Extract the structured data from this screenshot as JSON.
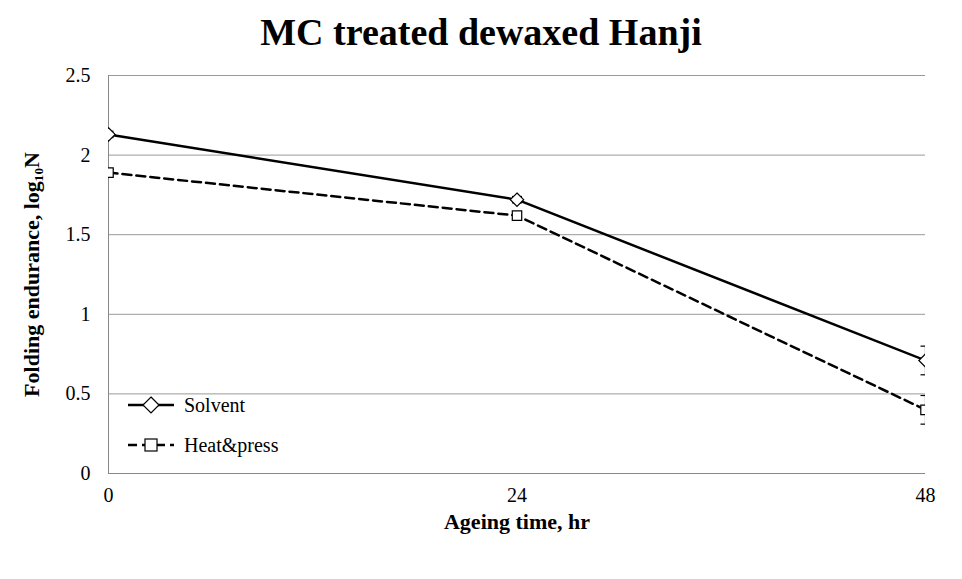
{
  "chart_data": {
    "type": "line",
    "title": "MC treated dewaxed Hanji",
    "x_label": "Ageing time, hr",
    "y_label": "Folding endurance, log₁₀N",
    "x": [
      0,
      24,
      48
    ],
    "series": [
      {
        "name": "Solvent",
        "color": "#000000",
        "marker": "diamond",
        "line_style": "solid",
        "values": [
          2.13,
          1.72,
          0.71
        ],
        "errors": [
          0.02,
          0.02,
          0.09
        ]
      },
      {
        "name": "Heat&press",
        "color": "#000000",
        "marker": "square",
        "line_style": "dashed",
        "values": [
          1.89,
          1.62,
          0.4
        ],
        "errors": [
          0.02,
          0.02,
          0.09
        ]
      }
    ],
    "xlim": [
      0,
      48
    ],
    "xticks": [
      0,
      24,
      48
    ],
    "ylim": [
      0,
      2.5
    ],
    "yticks": [
      0,
      0.5,
      1,
      1.5,
      2,
      2.5
    ],
    "grid": true,
    "legend": "lower left"
  }
}
